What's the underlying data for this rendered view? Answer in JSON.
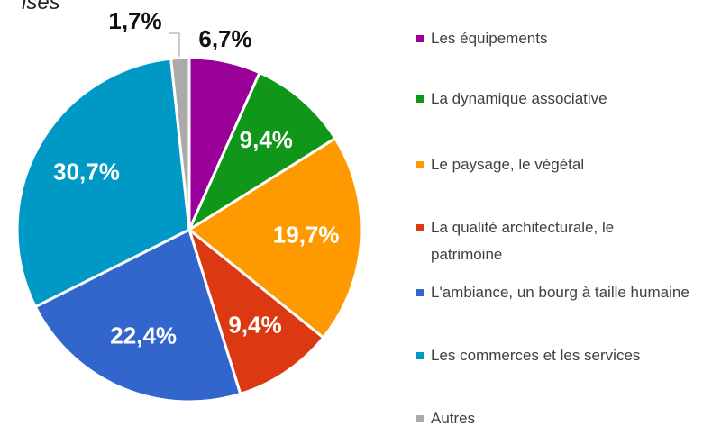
{
  "chart_data": {
    "type": "pie",
    "title": "ises",
    "categories": [
      "Les équipements",
      "La dynamique associative",
      "Le paysage, le végétal",
      "La qualité architecturale, le patrimoine",
      "L'ambiance, un bourg à taille humaine",
      "Les commerces et les services",
      "Autres"
    ],
    "values": [
      6.7,
      9.4,
      19.7,
      9.4,
      22.4,
      30.7,
      1.7
    ],
    "value_labels": [
      "6,7%",
      "9,4%",
      "19,7%",
      "9,4%",
      "22,4%",
      "30,7%",
      "1,7%"
    ],
    "colors": [
      "#990099",
      "#109618",
      "#ff9900",
      "#dc3912",
      "#3366cc",
      "#0099c6",
      "#aaaaaa"
    ],
    "legend": "right"
  }
}
